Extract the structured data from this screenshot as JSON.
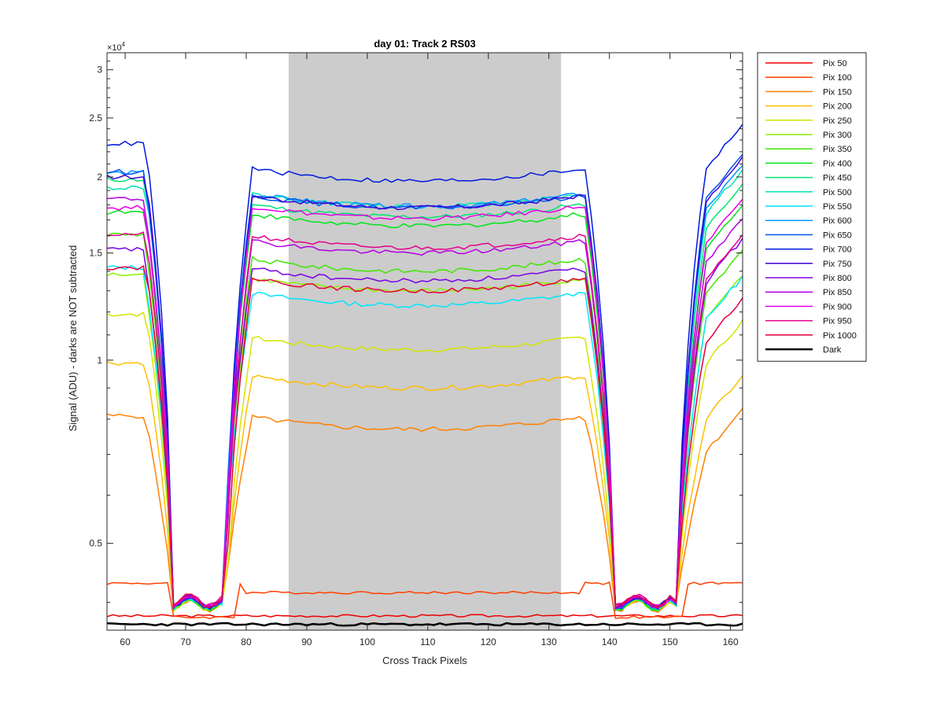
{
  "chart_data": {
    "type": "line",
    "title": "day 01: Track 2  RS03",
    "xlabel": "Cross Track Pixels",
    "ylabel": "Signal (ADU) - darks are NOT subtracted",
    "y_exponent_label": "×10",
    "y_exponent_power": "4",
    "y_scale": "log",
    "xlim": [
      57,
      162
    ],
    "ylim": [
      3600,
      32000
    ],
    "x_ticks": [
      60,
      70,
      80,
      90,
      100,
      110,
      120,
      130,
      140,
      150,
      160
    ],
    "y_ticks": [
      5000,
      10000,
      15000,
      20000,
      25000,
      30000
    ],
    "y_tick_labels": [
      "0.5",
      "1",
      "1.5",
      "2",
      "2.5",
      "3"
    ],
    "grid": false,
    "legend_position": "outside-right",
    "shaded_region": {
      "x_start": 87,
      "x_end": 132,
      "color": "#cccccc"
    },
    "series": [
      {
        "name": "Pix 50",
        "color": "#ee0000",
        "plateau": 3800,
        "left": 3800,
        "right": 3800
      },
      {
        "name": "Pix 100",
        "color": "#ff4000",
        "plateau": 4150,
        "left": 4300,
        "right": 4300
      },
      {
        "name": "Pix 150",
        "color": "#ff8000",
        "plateau": 7700,
        "left": 8100,
        "right": 8300
      },
      {
        "name": "Pix 200",
        "color": "#ffbf00",
        "plateau": 9000,
        "left": 9900,
        "right": 9400
      },
      {
        "name": "Pix 250",
        "color": "#d2e600",
        "plateau": 10400,
        "left": 11900,
        "right": 11600
      },
      {
        "name": "Pix 300",
        "color": "#8cf000",
        "plateau": 13000,
        "left": 13800,
        "right": 13700
      },
      {
        "name": "Pix 350",
        "color": "#40e600",
        "plateau": 14000,
        "left": 16100,
        "right": 15100
      },
      {
        "name": "Pix 400",
        "color": "#00e619",
        "plateau": 16600,
        "left": 17500,
        "right": 17900
      },
      {
        "name": "Pix 450",
        "color": "#00e673",
        "plateau": 17200,
        "left": 19800,
        "right": 19400
      },
      {
        "name": "Pix 500",
        "color": "#00e6b4",
        "plateau": 17900,
        "left": 19200,
        "right": 20500
      },
      {
        "name": "Pix 550",
        "color": "#00e5ff",
        "plateau": 12300,
        "left": 14200,
        "right": 13700
      },
      {
        "name": "Pix 600",
        "color": "#0099ff",
        "plateau": 17900,
        "left": 20300,
        "right": 20800
      },
      {
        "name": "Pix 650",
        "color": "#0055ee",
        "plateau": 17800,
        "left": 20400,
        "right": 21700
      },
      {
        "name": "Pix 700",
        "color": "#0019dd",
        "plateau": 19700,
        "left": 22700,
        "right": 24300
      },
      {
        "name": "Pix 750",
        "color": "#4000d9",
        "plateau": 17800,
        "left": 20000,
        "right": 21500
      },
      {
        "name": "Pix 800",
        "color": "#7a00e6",
        "plateau": 13500,
        "left": 15200,
        "right": 15800
      },
      {
        "name": "Pix 850",
        "color": "#b300e6",
        "plateau": 15000,
        "left": 18400,
        "right": 17000
      },
      {
        "name": "Pix 900",
        "color": "#e600e6",
        "plateau": 17100,
        "left": 17800,
        "right": 18300
      },
      {
        "name": "Pix 950",
        "color": "#e6008c",
        "plateau": 15300,
        "left": 16100,
        "right": 16000
      },
      {
        "name": "Pix 1000",
        "color": "#e6003c",
        "plateau": 13000,
        "left": 14200,
        "right": 12600
      },
      {
        "name": "Dark",
        "color": "#000000",
        "plateau": 3680,
        "left": 3680,
        "right": 3680
      }
    ]
  }
}
